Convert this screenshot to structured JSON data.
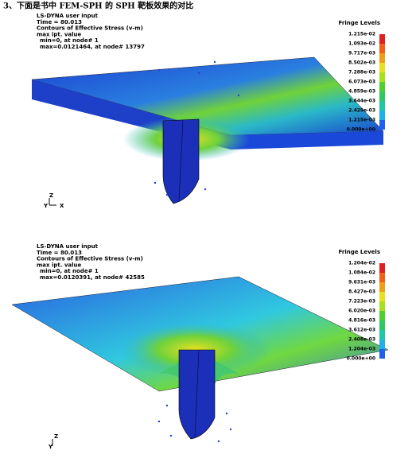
{
  "heading": "3、下面是书中 FEM-SPH 的 SPH 靶板效果的对比",
  "panels": [
    {
      "lines": [
        "LS-DYNA user input",
        "Time =     80.013",
        "Contours of Effective Stress (v-m)",
        "max ipt. value",
        "min=0, at node# 1",
        "max=0.0121464, at node# 13797"
      ],
      "legend_title": "Fringe Levels",
      "levels": [
        "1.215e-02",
        "1.093e-02",
        "9.717e-03",
        "8.502e-03",
        "7.288e-03",
        "6.073e-03",
        "4.859e-03",
        "3.644e-03",
        "2.429e-03",
        "1.215e-03",
        "0.000e+00"
      ],
      "axes": [
        "Z",
        "Y",
        "X"
      ]
    },
    {
      "lines": [
        "LS-DYNA user input",
        "Time =     80.013",
        "Contours of Effective Stress (v-m)",
        "max ipt. value",
        "min=0, at node# 1",
        "max=0.0120391, at node# 42585"
      ],
      "legend_title": "Fringe Levels",
      "levels": [
        "1.204e-02",
        "1.084e-02",
        "9.631e-03",
        "8.427e-03",
        "7.223e-03",
        "6.020e-03",
        "4.816e-03",
        "3.612e-03",
        "2.408e-03",
        "1.204e-03",
        "0.000e+00"
      ],
      "axes": [
        "Z",
        "Y"
      ]
    }
  ]
}
